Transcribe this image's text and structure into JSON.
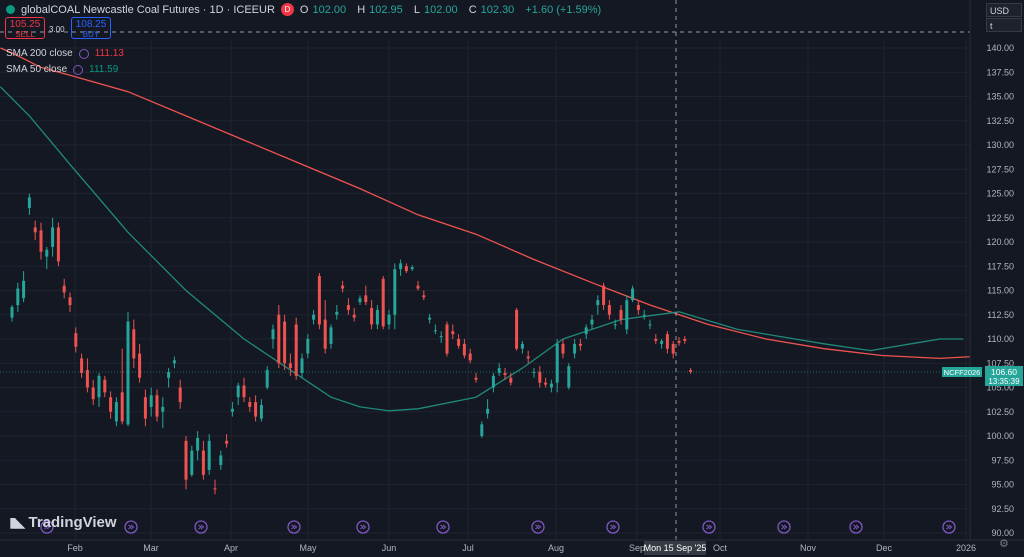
{
  "header": {
    "symbol_title": "globalCOAL Newcastle Coal Futures · 1D · ICEEUR",
    "d_badge": "D",
    "ohlc": {
      "o_label": "O",
      "o": "102.00",
      "h_label": "H",
      "h": "102.95",
      "l_label": "L",
      "l": "102.00",
      "c_label": "C",
      "c": "102.30",
      "change": "+1.60 (+1.59%)"
    }
  },
  "trade": {
    "sell_price": "105.25",
    "sell_label": "SELL",
    "buy_price": "108.25",
    "buy_label": "BUY",
    "spread": "3.00"
  },
  "indicators": [
    {
      "label": "SMA 200 close",
      "value": "111.13"
    },
    {
      "label": "SMA 50 close",
      "value": "111.59"
    }
  ],
  "right_panel": {
    "currency": "USD",
    "unit": "t"
  },
  "last_price": {
    "ticker": "NCFF2026",
    "price": "106.60",
    "countdown": "13:35:39"
  },
  "crosshair": {
    "date_label": "Mon 15 Sep '25"
  },
  "branding": {
    "logo_text": "TradingView"
  },
  "colors": {
    "background": "#141822",
    "up": "#26a69a",
    "down": "#ef5350",
    "sma200": "#ef5350",
    "sma50": "#1f8a7a",
    "grid": "#1f2330",
    "accent_blue": "#2962ff"
  },
  "chart_data": {
    "type": "candlestick",
    "x_axis_ticks": [
      "Feb",
      "Mar",
      "Apr",
      "May",
      "Jun",
      "Jul",
      "Aug",
      "Sep",
      "Oct",
      "Nov",
      "Dec",
      "2026"
    ],
    "y_axis_ticks": [
      90,
      92.5,
      95,
      97.5,
      100,
      102.5,
      105,
      107.5,
      110,
      112.5,
      115,
      117.5,
      120,
      122.5,
      125,
      127.5,
      130,
      132.5,
      135,
      137.5,
      140
    ],
    "ylim": [
      89.5,
      141.5
    ],
    "grid": true,
    "candles": [
      {
        "o": 112.2,
        "h": 113.5,
        "l": 111.8,
        "c": 113.3
      },
      {
        "o": 113.5,
        "h": 115.8,
        "l": 112.8,
        "c": 115.2
      },
      {
        "o": 114.2,
        "h": 117.0,
        "l": 113.8,
        "c": 116.0
      },
      {
        "o": 123.5,
        "h": 125.0,
        "l": 122.8,
        "c": 124.6
      },
      {
        "o": 121.5,
        "h": 122.2,
        "l": 120.2,
        "c": 121.0
      },
      {
        "o": 121.2,
        "h": 122.0,
        "l": 118.2,
        "c": 119.0
      },
      {
        "o": 118.5,
        "h": 119.5,
        "l": 117.2,
        "c": 119.2
      },
      {
        "o": 119.5,
        "h": 122.5,
        "l": 118.5,
        "c": 121.5
      },
      {
        "o": 121.5,
        "h": 122.0,
        "l": 117.5,
        "c": 118.0
      },
      {
        "o": 115.5,
        "h": 116.2,
        "l": 114.2,
        "c": 114.8
      },
      {
        "o": 114.3,
        "h": 114.8,
        "l": 112.8,
        "c": 113.5
      },
      {
        "o": 110.6,
        "h": 111.2,
        "l": 108.6,
        "c": 109.2
      },
      {
        "o": 108.0,
        "h": 108.5,
        "l": 106.0,
        "c": 106.5
      },
      {
        "o": 106.8,
        "h": 108.0,
        "l": 104.5,
        "c": 105.0
      },
      {
        "o": 105.0,
        "h": 105.8,
        "l": 103.2,
        "c": 103.8
      },
      {
        "o": 104.0,
        "h": 106.5,
        "l": 103.0,
        "c": 106.2
      },
      {
        "o": 105.8,
        "h": 106.2,
        "l": 104.0,
        "c": 104.5
      },
      {
        "o": 104.0,
        "h": 104.6,
        "l": 101.8,
        "c": 102.5
      },
      {
        "o": 101.5,
        "h": 104.0,
        "l": 101.0,
        "c": 103.5
      },
      {
        "o": 104.5,
        "h": 109.0,
        "l": 101.2,
        "c": 101.5
      },
      {
        "o": 101.2,
        "h": 112.8,
        "l": 101.0,
        "c": 111.8
      },
      {
        "o": 111.0,
        "h": 112.0,
        "l": 107.0,
        "c": 108.0
      },
      {
        "o": 108.5,
        "h": 109.5,
        "l": 105.5,
        "c": 106.0
      },
      {
        "o": 104.0,
        "h": 104.8,
        "l": 101.0,
        "c": 101.8
      },
      {
        "o": 103.0,
        "h": 105.0,
        "l": 102.0,
        "c": 104.2
      },
      {
        "o": 104.2,
        "h": 104.8,
        "l": 101.5,
        "c": 102.0
      },
      {
        "o": 102.5,
        "h": 104.0,
        "l": 100.8,
        "c": 103.0
      },
      {
        "o": 106.0,
        "h": 107.0,
        "l": 105.0,
        "c": 106.6
      },
      {
        "o": 107.5,
        "h": 108.2,
        "l": 107.0,
        "c": 107.8
      },
      {
        "o": 105.0,
        "h": 105.8,
        "l": 102.8,
        "c": 103.5
      },
      {
        "o": 99.5,
        "h": 100.0,
        "l": 94.5,
        "c": 95.5
      },
      {
        "o": 96.0,
        "h": 99.0,
        "l": 95.8,
        "c": 98.5
      },
      {
        "o": 98.5,
        "h": 100.5,
        "l": 97.5,
        "c": 99.8
      },
      {
        "o": 98.5,
        "h": 99.5,
        "l": 95.5,
        "c": 96.0
      },
      {
        "o": 96.5,
        "h": 100.2,
        "l": 96.0,
        "c": 99.5
      },
      {
        "o": 94.6,
        "h": 95.5,
        "l": 94.0,
        "c": 94.5
      },
      {
        "o": 97.0,
        "h": 98.5,
        "l": 96.5,
        "c": 98.0
      },
      {
        "o": 99.5,
        "h": 100.2,
        "l": 98.8,
        "c": 99.2
      },
      {
        "o": 102.5,
        "h": 103.5,
        "l": 102.0,
        "c": 102.8
      },
      {
        "o": 104.0,
        "h": 105.5,
        "l": 103.2,
        "c": 105.2
      },
      {
        "o": 105.2,
        "h": 106.0,
        "l": 103.5,
        "c": 104.0
      },
      {
        "o": 103.5,
        "h": 104.0,
        "l": 102.5,
        "c": 103.0
      },
      {
        "o": 103.5,
        "h": 104.2,
        "l": 101.5,
        "c": 102.0
      },
      {
        "o": 101.8,
        "h": 103.8,
        "l": 101.5,
        "c": 103.2
      },
      {
        "o": 105.0,
        "h": 107.2,
        "l": 104.8,
        "c": 106.8
      },
      {
        "o": 110.0,
        "h": 111.5,
        "l": 109.0,
        "c": 111.0
      },
      {
        "o": 112.5,
        "h": 113.5,
        "l": 107.0,
        "c": 107.5
      },
      {
        "o": 111.8,
        "h": 112.5,
        "l": 106.8,
        "c": 107.5
      },
      {
        "o": 107.5,
        "h": 108.5,
        "l": 106.2,
        "c": 107.0
      },
      {
        "o": 111.5,
        "h": 112.2,
        "l": 105.8,
        "c": 106.2
      },
      {
        "o": 106.5,
        "h": 108.5,
        "l": 106.0,
        "c": 108.0
      },
      {
        "o": 108.5,
        "h": 110.5,
        "l": 108.0,
        "c": 110.0
      },
      {
        "o": 112.0,
        "h": 113.0,
        "l": 111.5,
        "c": 112.5
      },
      {
        "o": 116.5,
        "h": 116.8,
        "l": 111.0,
        "c": 111.5
      },
      {
        "o": 112.0,
        "h": 114.0,
        "l": 108.5,
        "c": 109.0
      },
      {
        "o": 109.5,
        "h": 111.5,
        "l": 109.0,
        "c": 111.2
      },
      {
        "o": 112.5,
        "h": 113.5,
        "l": 112.0,
        "c": 112.8
      },
      {
        "o": 115.5,
        "h": 116.0,
        "l": 114.8,
        "c": 115.2
      },
      {
        "o": 113.5,
        "h": 114.2,
        "l": 112.5,
        "c": 113.0
      },
      {
        "o": 112.5,
        "h": 113.2,
        "l": 111.8,
        "c": 112.2
      },
      {
        "o": 113.8,
        "h": 114.5,
        "l": 113.5,
        "c": 114.2
      },
      {
        "o": 114.5,
        "h": 115.5,
        "l": 113.5,
        "c": 113.8
      },
      {
        "o": 113.2,
        "h": 114.0,
        "l": 111.0,
        "c": 111.5
      },
      {
        "o": 111.5,
        "h": 113.5,
        "l": 111.0,
        "c": 113.0
      },
      {
        "o": 116.2,
        "h": 116.5,
        "l": 111.0,
        "c": 111.3
      },
      {
        "o": 111.5,
        "h": 113.0,
        "l": 111.0,
        "c": 112.5
      },
      {
        "o": 112.5,
        "h": 117.8,
        "l": 111.0,
        "c": 117.2
      },
      {
        "o": 117.2,
        "h": 118.2,
        "l": 116.5,
        "c": 117.8
      },
      {
        "o": 117.5,
        "h": 117.8,
        "l": 116.8,
        "c": 117.0
      },
      {
        "o": 117.2,
        "h": 117.6,
        "l": 117.0,
        "c": 117.4
      },
      {
        "o": 115.5,
        "h": 116.0,
        "l": 115.0,
        "c": 115.2
      },
      {
        "o": 114.5,
        "h": 115.0,
        "l": 114.0,
        "c": 114.3
      },
      {
        "o": 112.0,
        "h": 112.6,
        "l": 111.6,
        "c": 112.2
      },
      {
        "o": 110.8,
        "h": 111.5,
        "l": 110.5,
        "c": 110.9
      },
      {
        "o": 110.2,
        "h": 110.8,
        "l": 109.6,
        "c": 110.3
      },
      {
        "o": 111.5,
        "h": 111.8,
        "l": 108.2,
        "c": 108.5
      },
      {
        "o": 110.8,
        "h": 111.5,
        "l": 110.0,
        "c": 110.5
      },
      {
        "o": 110.0,
        "h": 110.5,
        "l": 109.0,
        "c": 109.3
      },
      {
        "o": 109.5,
        "h": 110.0,
        "l": 108.0,
        "c": 108.3
      },
      {
        "o": 108.5,
        "h": 109.0,
        "l": 107.5,
        "c": 107.8
      },
      {
        "o": 106.0,
        "h": 106.5,
        "l": 105.5,
        "c": 105.8
      },
      {
        "o": 100.0,
        "h": 101.5,
        "l": 99.8,
        "c": 101.2
      },
      {
        "o": 102.3,
        "h": 103.8,
        "l": 101.8,
        "c": 102.8
      },
      {
        "o": 105.0,
        "h": 106.5,
        "l": 104.5,
        "c": 106.2
      },
      {
        "o": 106.5,
        "h": 107.5,
        "l": 106.2,
        "c": 107.0
      },
      {
        "o": 106.5,
        "h": 107.0,
        "l": 105.8,
        "c": 106.3
      },
      {
        "o": 106.0,
        "h": 106.5,
        "l": 105.2,
        "c": 105.5
      },
      {
        "o": 113.0,
        "h": 113.2,
        "l": 108.8,
        "c": 109.0
      },
      {
        "o": 109.0,
        "h": 109.8,
        "l": 108.5,
        "c": 109.5
      },
      {
        "o": 108.2,
        "h": 108.8,
        "l": 107.5,
        "c": 108.0
      },
      {
        "o": 106.5,
        "h": 107.0,
        "l": 106.0,
        "c": 106.6
      },
      {
        "o": 106.6,
        "h": 107.2,
        "l": 105.0,
        "c": 105.5
      },
      {
        "o": 105.5,
        "h": 106.0,
        "l": 105.0,
        "c": 105.3
      },
      {
        "o": 105.0,
        "h": 105.8,
        "l": 104.5,
        "c": 105.4
      },
      {
        "o": 105.5,
        "h": 110.0,
        "l": 104.5,
        "c": 109.5
      },
      {
        "o": 109.5,
        "h": 110.0,
        "l": 108.0,
        "c": 108.5
      },
      {
        "o": 105.0,
        "h": 107.5,
        "l": 104.8,
        "c": 107.2
      },
      {
        "o": 108.5,
        "h": 110.0,
        "l": 108.0,
        "c": 109.5
      },
      {
        "o": 109.5,
        "h": 110.0,
        "l": 108.8,
        "c": 109.3
      },
      {
        "o": 110.5,
        "h": 111.5,
        "l": 110.0,
        "c": 111.2
      },
      {
        "o": 111.5,
        "h": 112.5,
        "l": 111.0,
        "c": 112.0
      },
      {
        "o": 113.5,
        "h": 114.5,
        "l": 112.5,
        "c": 114.0
      },
      {
        "o": 115.5,
        "h": 115.8,
        "l": 113.0,
        "c": 113.5
      },
      {
        "o": 113.5,
        "h": 114.0,
        "l": 112.0,
        "c": 112.5
      },
      {
        "o": 111.5,
        "h": 112.0,
        "l": 111.0,
        "c": 111.5
      },
      {
        "o": 113.0,
        "h": 113.5,
        "l": 111.5,
        "c": 112.0
      },
      {
        "o": 111.0,
        "h": 114.5,
        "l": 110.5,
        "c": 114.0
      },
      {
        "o": 114.0,
        "h": 115.5,
        "l": 113.8,
        "c": 115.2
      },
      {
        "o": 113.5,
        "h": 114.0,
        "l": 112.5,
        "c": 113.0
      },
      {
        "o": 112.5,
        "h": 113.0,
        "l": 112.0,
        "c": 112.5
      },
      {
        "o": 111.5,
        "h": 112.0,
        "l": 111.0,
        "c": 111.5
      },
      {
        "o": 110.0,
        "h": 110.5,
        "l": 109.5,
        "c": 109.8
      },
      {
        "o": 109.5,
        "h": 110.0,
        "l": 109.0,
        "c": 109.8
      },
      {
        "o": 110.5,
        "h": 110.8,
        "l": 108.5,
        "c": 109.0
      },
      {
        "o": 109.5,
        "h": 109.8,
        "l": 108.0,
        "c": 108.5
      },
      {
        "o": 109.8,
        "h": 110.2,
        "l": 109.3,
        "c": 109.6
      },
      {
        "o": 110.0,
        "h": 110.3,
        "l": 109.5,
        "c": 109.8
      },
      {
        "o": 106.8,
        "h": 107.0,
        "l": 106.4,
        "c": 106.6
      }
    ],
    "sma200": [
      [
        -2,
        140.0
      ],
      [
        0,
        139.5
      ],
      [
        5,
        138.0
      ],
      [
        10,
        137.2
      ],
      [
        20,
        135.5
      ],
      [
        30,
        133.0
      ],
      [
        40,
        130.5
      ],
      [
        50,
        128.0
      ],
      [
        60,
        125.5
      ],
      [
        70,
        122.8
      ],
      [
        80,
        120.8
      ],
      [
        90,
        118.2
      ],
      [
        100,
        115.8
      ],
      [
        110,
        113.5
      ],
      [
        120,
        111.5
      ],
      [
        130,
        110.0
      ],
      [
        140,
        109.0
      ],
      [
        150,
        108.3
      ],
      [
        160,
        108.0
      ],
      [
        169,
        108.3
      ]
    ],
    "sma50": [
      [
        -2,
        136.0
      ],
      [
        3,
        133.0
      ],
      [
        10,
        128.0
      ],
      [
        20,
        121.0
      ],
      [
        30,
        115.0
      ],
      [
        40,
        110.0
      ],
      [
        50,
        106.0
      ],
      [
        55,
        104.0
      ],
      [
        60,
        103.0
      ],
      [
        65,
        102.6
      ],
      [
        70,
        102.8
      ],
      [
        80,
        104.0
      ],
      [
        88,
        107.0
      ],
      [
        95,
        110.0
      ],
      [
        105,
        112.0
      ],
      [
        115,
        112.8
      ],
      [
        125,
        111.0
      ],
      [
        135,
        110.0
      ],
      [
        140,
        109.5
      ],
      [
        148,
        108.8
      ],
      [
        155,
        109.5
      ],
      [
        160,
        110.0
      ],
      [
        164,
        110.0
      ]
    ]
  }
}
